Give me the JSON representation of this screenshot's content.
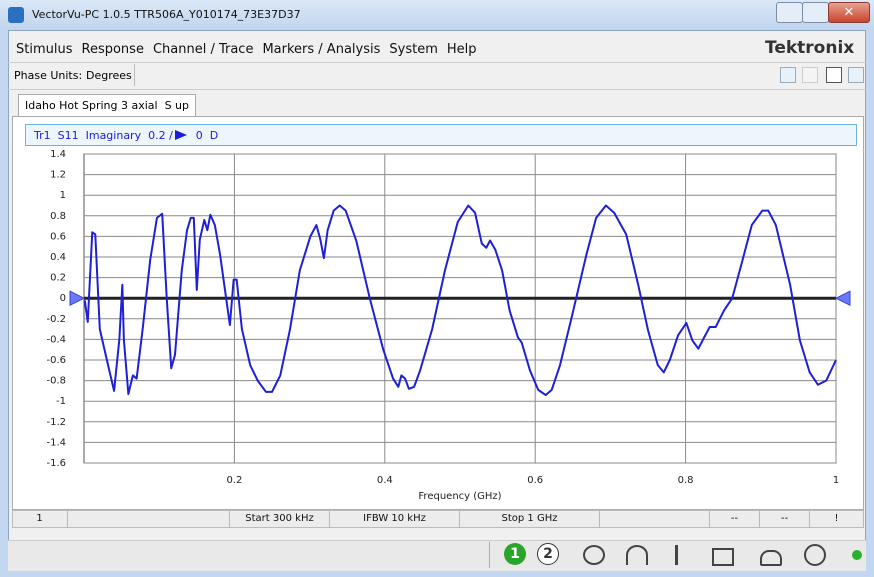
{
  "window": {
    "title": "VectorVu-PC 1.0.5 TTR506A_Y010174_73E37D37"
  },
  "menu": [
    "Stimulus",
    "Response",
    "Channel / Trace",
    "Markers / Analysis",
    "System",
    "Help"
  ],
  "brand": "Tektronix",
  "toolbar": {
    "label": "Phase Units:",
    "value": "Degrees"
  },
  "tab": "Idaho Hot Spring 3 axial  S up",
  "trace_header": {
    "trace": "Tr1",
    "parameter": "S11",
    "format": "Imaginary",
    "scale": "0.2 /",
    "unit": "D"
  },
  "chart_data": {
    "type": "line",
    "x_label": "Frequency (GHz)",
    "xlim": [
      0,
      1
    ],
    "xticks": [
      0.2,
      0.4,
      0.6,
      0.8,
      1
    ],
    "ylim": [
      -1.6,
      1.4
    ],
    "yticks": [
      -1.6,
      -1.4,
      -1.2,
      -1,
      -0.8,
      -0.6,
      -0.4,
      -0.2,
      0,
      0.2,
      0.4,
      0.6,
      0.8,
      1,
      1.2,
      1.4
    ],
    "grid": true,
    "reference": 0,
    "reference_color": "#6e78ff",
    "series": [
      {
        "name": "Tr1",
        "color": "#1f1fd6",
        "x": [
          0.001,
          0.005,
          0.011,
          0.015,
          0.021,
          0.032,
          0.04,
          0.047,
          0.051,
          0.053,
          0.059,
          0.065,
          0.07,
          0.078,
          0.088,
          0.097,
          0.104,
          0.11,
          0.116,
          0.121,
          0.13,
          0.137,
          0.142,
          0.146,
          0.15,
          0.154,
          0.16,
          0.164,
          0.168,
          0.174,
          0.181,
          0.189,
          0.194,
          0.199,
          0.203,
          0.21,
          0.221,
          0.231,
          0.242,
          0.25,
          0.261,
          0.274,
          0.287,
          0.301,
          0.309,
          0.314,
          0.319,
          0.324,
          0.332,
          0.34,
          0.348,
          0.362,
          0.38,
          0.398,
          0.411,
          0.418,
          0.422,
          0.427,
          0.432,
          0.439,
          0.447,
          0.463,
          0.48,
          0.497,
          0.511,
          0.52,
          0.529,
          0.535,
          0.54,
          0.547,
          0.556,
          0.566,
          0.577,
          0.582,
          0.593,
          0.604,
          0.614,
          0.622,
          0.633,
          0.649,
          0.668,
          0.681,
          0.694,
          0.705,
          0.721,
          0.737,
          0.75,
          0.763,
          0.771,
          0.779,
          0.79,
          0.801,
          0.809,
          0.817,
          0.824,
          0.832,
          0.84,
          0.851,
          0.862,
          0.875,
          0.888,
          0.902,
          0.91,
          0.92,
          0.939,
          0.952,
          0.965,
          0.976,
          0.987,
          1.0
        ],
        "values": [
          -0.02,
          -0.23,
          0.64,
          0.62,
          -0.3,
          -0.65,
          -0.9,
          -0.4,
          0.13,
          -0.4,
          -0.93,
          -0.75,
          -0.78,
          -0.3,
          0.37,
          0.78,
          0.82,
          0,
          -0.68,
          -0.55,
          0.27,
          0.66,
          0.78,
          0.78,
          0.08,
          0.57,
          0.76,
          0.66,
          0.81,
          0.71,
          0.42,
          0,
          -0.26,
          0.18,
          0.18,
          -0.3,
          -0.65,
          -0.8,
          -0.91,
          -0.91,
          -0.75,
          -0.3,
          0.27,
          0.6,
          0.71,
          0.58,
          0.39,
          0.66,
          0.85,
          0.9,
          0.85,
          0.56,
          0,
          -0.5,
          -0.78,
          -0.86,
          -0.75,
          -0.78,
          -0.88,
          -0.86,
          -0.7,
          -0.3,
          0.27,
          0.74,
          0.9,
          0.83,
          0.53,
          0.49,
          0.56,
          0.47,
          0.27,
          -0.12,
          -0.38,
          -0.43,
          -0.7,
          -0.89,
          -0.94,
          -0.89,
          -0.65,
          -0.17,
          0.42,
          0.78,
          0.9,
          0.83,
          0.62,
          0.13,
          -0.31,
          -0.65,
          -0.72,
          -0.6,
          -0.36,
          -0.24,
          -0.41,
          -0.49,
          -0.39,
          -0.28,
          -0.28,
          -0.12,
          0,
          0.35,
          0.71,
          0.85,
          0.85,
          0.71,
          0.13,
          -0.41,
          -0.72,
          -0.84,
          -0.8,
          -0.6
        ]
      }
    ]
  },
  "status_bar": [
    "1",
    "Start 300 kHz",
    "IFBW 10 kHz",
    "Stop 1 GHz",
    "--",
    "--",
    "!"
  ],
  "channels": [
    "1",
    "2"
  ]
}
